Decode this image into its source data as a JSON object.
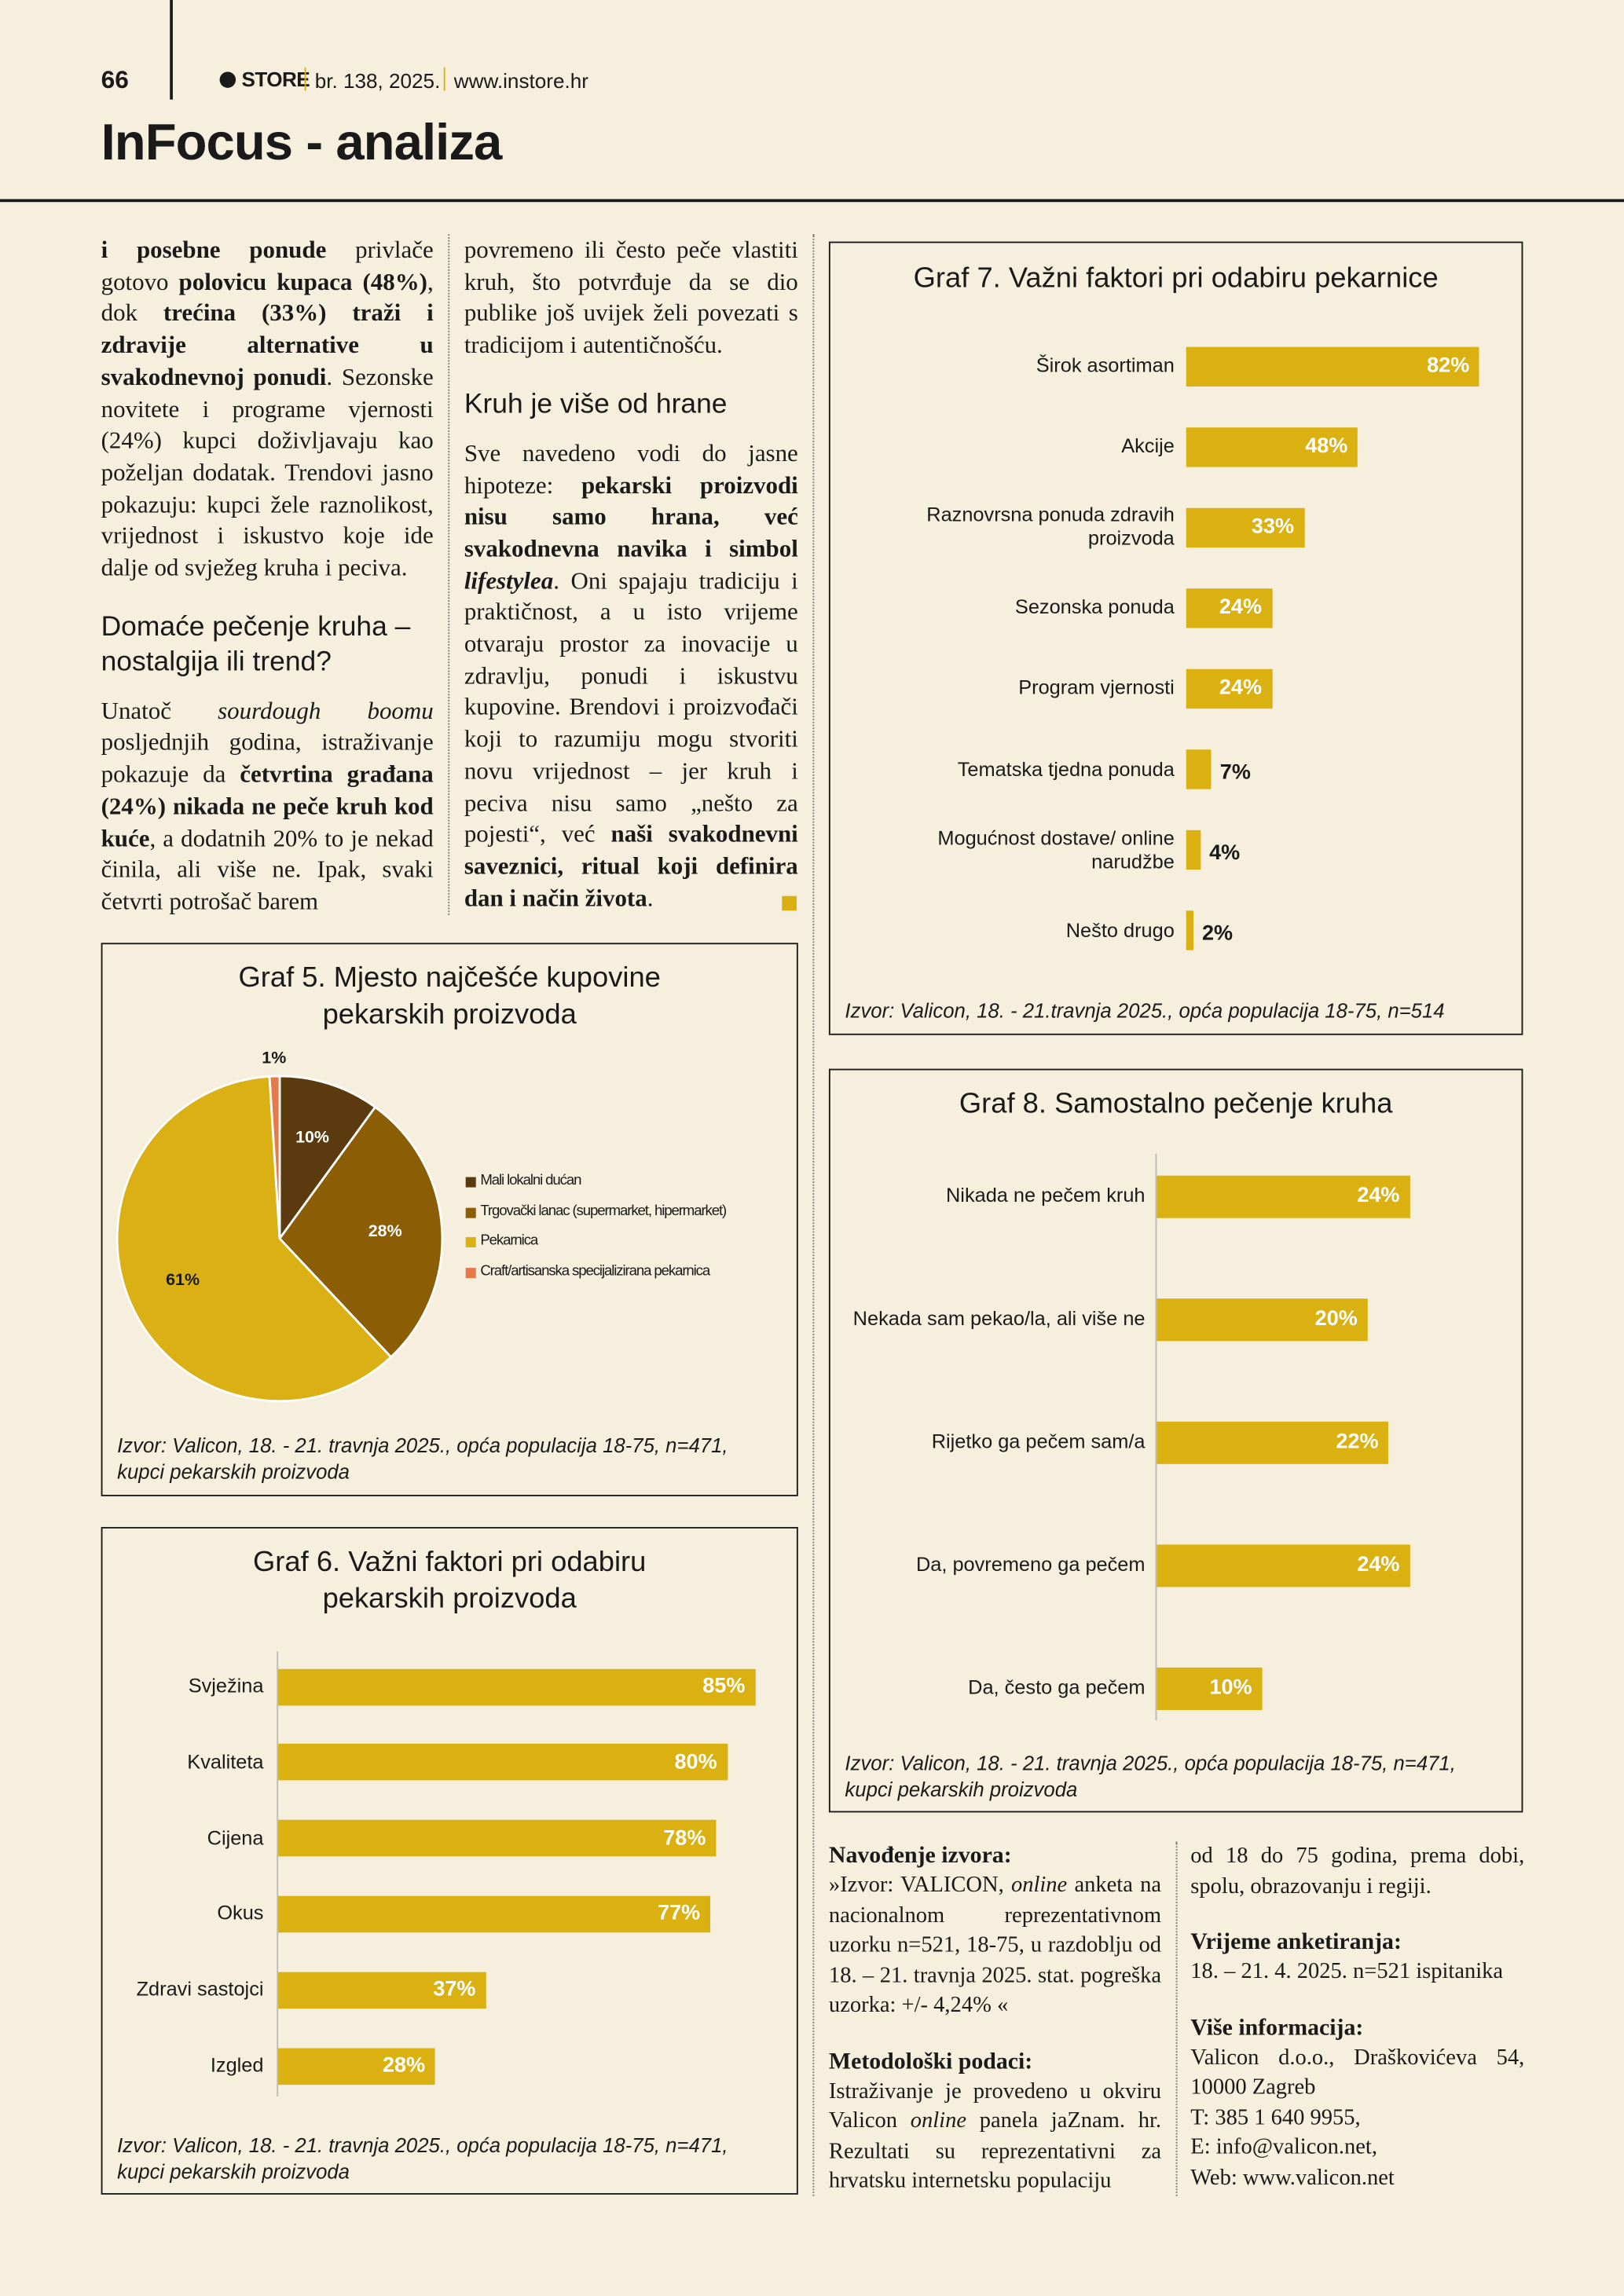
{
  "header": {
    "page": "66",
    "brand": "STORE",
    "issue": "br. 138, 2025.",
    "url": "www.instore.hr",
    "title": "InFocus - analiza"
  },
  "article": {
    "columns": [
      [
        {
          "runs": [
            {
              "text": "i posebne ponude",
              "style": "bold"
            },
            {
              "text": " privlače gotovo "
            },
            {
              "text": "polovicu kupaca (48%)",
              "style": "bold"
            },
            {
              "text": ", dok "
            },
            {
              "text": "trećina (33%) traži i zdravije alternative u svakodnevnoj ponudi",
              "style": "bold"
            },
            {
              "text": ". Sezonske novitete i programe vjernosti (24%) kupci doživljavaju kao poželjan dodatak. Trendovi jasno pokazuju: kupci žele raznolikost, vrijednost i iskustvo koje ide dalje od svježeg kruha i peciva."
            }
          ]
        },
        {
          "heading": "Domaće pečenje kruha – nostalgija ili trend?"
        },
        {
          "runs": [
            {
              "text": "Unatoč "
            },
            {
              "text": "sourdough boomu",
              "style": "italic"
            },
            {
              "text": " posljednjih godina, istraživanje pokazuje da "
            },
            {
              "text": "četvrtina građana (24%) nikada ne peče kruh kod kuće",
              "style": "bold"
            },
            {
              "text": ", a dodatnih 20% to je nekad činila, ali više ne. Ipak, svaki četvrti potrošač barem"
            }
          ]
        }
      ],
      [
        {
          "runs": [
            {
              "text": "povremeno ili često peče vlastiti kruh, što potvrđuje da se dio publike još uvijek želi povezati s tradicijom i autentičnošću."
            }
          ]
        },
        {
          "heading": "Kruh je više od hrane"
        },
        {
          "runs": [
            {
              "text": "Sve navedeno vodi do jasne hipoteze: "
            },
            {
              "text": "pekarski proizvodi nisu samo hrana, već svakodnevna navika i simbol ",
              "style": "bold"
            },
            {
              "text": "lifestylea",
              "style": "bold-italic"
            },
            {
              "text": ". Oni spajaju tradiciju i praktičnost, a u isto vrijeme otvaraju prostor za inovacije u zdravlju, ponudi i iskustvu kupovine. Brendovi i proizvođači koji to razumiju mogu stvoriti novu vrijednost – jer kruh i peciva nisu samo „nešto za pojesti“, već "
            },
            {
              "text": "naši svakodnevni saveznici, ritual koji definira dan i način života",
              "style": "bold"
            },
            {
              "text": "."
            }
          ]
        }
      ]
    ]
  },
  "chart_data": [
    {
      "type": "pie",
      "title": "Graf 5. Mjesto najčešće kupovine pekarskih proizvoda",
      "categories": [
        "Mali lokalni dućan",
        "Trgovački lanac (supermarket, hipermarket)",
        "Pekarnica",
        "Craft/artisanska specijalizirana pekarnica"
      ],
      "values": [
        10,
        28,
        61,
        1
      ],
      "value_labels": [
        "10%",
        "28%",
        "61%",
        "1%"
      ],
      "colors": [
        "#5c3a0f",
        "#8b5d05",
        "#dbb014",
        "#e77a48"
      ],
      "legend": "right",
      "source": "Izvor: Valicon, 18. - 21. travnja 2025., opća populacija 18-75, n=471, kupci pekarskih proizvoda"
    },
    {
      "type": "bar",
      "orientation": "horizontal",
      "title": "Graf 6. Važni faktori pri odabiru pekarskih proizvoda",
      "categories": [
        "Svježina",
        "Kvaliteta",
        "Cijena",
        "Okus",
        "Zdravi sastojci",
        "Izgled"
      ],
      "values": [
        85,
        80,
        78,
        77,
        37,
        28
      ],
      "value_labels": [
        "85%",
        "80%",
        "78%",
        "77%",
        "37%",
        "28%"
      ],
      "color": "#dab111",
      "xlim": [
        0,
        90
      ],
      "axis_line": true,
      "source": "Izvor: Valicon, 18. - 21. travnja 2025., opća populacija 18-75, n=471, kupci pekarskih proizvoda"
    },
    {
      "type": "bar",
      "orientation": "horizontal",
      "title": "Graf 7. Važni faktori pri odabiru pekarnice",
      "categories": [
        "Širok asortiman",
        "Akcije",
        "Raznovrsna ponuda zdravih proizvoda",
        "Sezonska ponuda",
        "Program vjernosti",
        "Tematska tjedna ponuda",
        "Mogućnost dostave/ online narudžbe",
        "Nešto drugo"
      ],
      "values": [
        82,
        48,
        33,
        24,
        24,
        7,
        4,
        2
      ],
      "value_labels": [
        "82%",
        "48%",
        "33%",
        "24%",
        "24%",
        "7%",
        "4%",
        "2%"
      ],
      "color": "#dab111",
      "xlim": [
        0,
        90
      ],
      "axis_line": false,
      "source": "Izvor: Valicon, 18. - 21.travnja 2025., opća populacija 18-75, n=514"
    },
    {
      "type": "bar",
      "orientation": "horizontal",
      "title": "Graf 8. Samostalno pečenje kruha",
      "categories": [
        "Nikada ne pečem kruh",
        "Nekada sam pekao/la, ali više ne",
        "Rijetko ga pečem sam/a",
        "Da, povremeno ga pečem",
        "Da, često ga pečem"
      ],
      "values": [
        24,
        20,
        22,
        24,
        10
      ],
      "value_labels": [
        "24%",
        "20%",
        "22%",
        "24%",
        "10%"
      ],
      "color": "#dab111",
      "xlim": [
        0,
        30
      ],
      "axis_line": true,
      "source": "Izvor: Valicon, 18. - 21. travnja 2025., opća populacija 18-75, n=471, kupci pekarskih proizvoda"
    }
  ],
  "sources": {
    "columns": [
      [
        {
          "heading": "Navođenje izvora:"
        },
        {
          "runs": [
            {
              "text": "»Izvor: VALICON, "
            },
            {
              "text": "online",
              "style": "italic"
            },
            {
              "text": " anketa na nacionalnom reprezentativnom uzorku n=521, 18-75, u razdoblju od 18. – 21. travnja 2025. stat. pogreška uzorka: +/- 4,24% «"
            }
          ]
        },
        {
          "heading": "Metodološki podaci:"
        },
        {
          "runs": [
            {
              "text": "Istraživanje je provedeno u okviru Valicon "
            },
            {
              "text": "online",
              "style": "italic"
            },
            {
              "text": " panela jaZnam. hr. Rezultati su reprezentativni za hrvatsku internetsku populaciju"
            }
          ]
        }
      ],
      [
        {
          "runs": [
            {
              "text": "od 18 do 75 godina, prema dobi, spolu, obrazovanju i regiji."
            }
          ]
        },
        {
          "heading": "Vrijeme anketiranja:"
        },
        {
          "runs": [
            {
              "text": "18. – 21. 4. 2025. n=521 ispitanika"
            }
          ]
        },
        {
          "heading": "Više informacija:"
        },
        {
          "runs": [
            {
              "text": "Valicon d.o.o., Draškovićeva 54, 10000 Zagreb"
            }
          ]
        },
        {
          "runs": [
            {
              "text": "T: 385 1 640 9955,"
            }
          ]
        },
        {
          "runs": [
            {
              "text": "E: info@valicon.net,"
            }
          ]
        },
        {
          "runs": [
            {
              "text": "Web: www.valicon.net"
            }
          ]
        }
      ]
    ]
  }
}
